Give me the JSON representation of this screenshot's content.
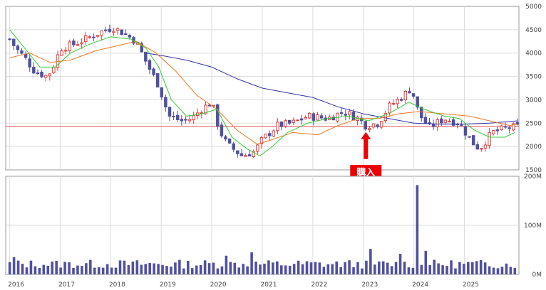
{
  "chart_data": [
    {
      "type": "candlestick",
      "panel": "price",
      "x_ticks": [
        "2016",
        "2017",
        "2018",
        "2019",
        "2020",
        "2021",
        "2022",
        "2023",
        "2024",
        "2025"
      ],
      "y_ticks": [
        "5000",
        "4500",
        "4000",
        "3500",
        "3000",
        "2500",
        "2000",
        "1500"
      ],
      "ylim": [
        1500,
        5000
      ],
      "reference_price": 2430,
      "annotation": {
        "label": "購入",
        "date": 2023.05,
        "price": 2250
      },
      "candle_series_anchors": [
        {
          "t": 2016.0,
          "v": 4300
        },
        {
          "t": 2016.12,
          "v": 4100
        },
        {
          "t": 2016.3,
          "v": 3900
        },
        {
          "t": 2016.5,
          "v": 3600
        },
        {
          "t": 2016.75,
          "v": 3500
        },
        {
          "t": 2016.9,
          "v": 3800
        },
        {
          "t": 2017.0,
          "v": 4100
        },
        {
          "t": 2017.3,
          "v": 4200
        },
        {
          "t": 2017.6,
          "v": 4350
        },
        {
          "t": 2017.9,
          "v": 4500
        },
        {
          "t": 2018.05,
          "v": 4550
        },
        {
          "t": 2018.3,
          "v": 4400
        },
        {
          "t": 2018.5,
          "v": 4250
        },
        {
          "t": 2018.75,
          "v": 3700
        },
        {
          "t": 2018.95,
          "v": 3300
        },
        {
          "t": 2019.15,
          "v": 2650
        },
        {
          "t": 2019.4,
          "v": 2550
        },
        {
          "t": 2019.6,
          "v": 2600
        },
        {
          "t": 2019.8,
          "v": 2800
        },
        {
          "t": 2020.0,
          "v": 2950
        },
        {
          "t": 2020.15,
          "v": 2350
        },
        {
          "t": 2020.3,
          "v": 2050
        },
        {
          "t": 2020.6,
          "v": 1800
        },
        {
          "t": 2020.85,
          "v": 1900
        },
        {
          "t": 2021.0,
          "v": 2150
        },
        {
          "t": 2021.3,
          "v": 2450
        },
        {
          "t": 2021.6,
          "v": 2500
        },
        {
          "t": 2021.9,
          "v": 2650
        },
        {
          "t": 2022.3,
          "v": 2600
        },
        {
          "t": 2022.6,
          "v": 2750
        },
        {
          "t": 2022.9,
          "v": 2600
        },
        {
          "t": 2023.05,
          "v": 2450
        },
        {
          "t": 2023.3,
          "v": 2500
        },
        {
          "t": 2023.5,
          "v": 2850
        },
        {
          "t": 2023.75,
          "v": 3050
        },
        {
          "t": 2023.95,
          "v": 3250
        },
        {
          "t": 2024.1,
          "v": 2700
        },
        {
          "t": 2024.3,
          "v": 2400
        },
        {
          "t": 2024.6,
          "v": 2600
        },
        {
          "t": 2024.9,
          "v": 2500
        },
        {
          "t": 2025.15,
          "v": 2100
        },
        {
          "t": 2025.3,
          "v": 1950
        },
        {
          "t": 2025.55,
          "v": 2300
        },
        {
          "t": 2025.85,
          "v": 2400
        },
        {
          "t": 2026.05,
          "v": 2420
        }
      ],
      "ma_short": [
        [
          2016.0,
          4500
        ],
        [
          2016.3,
          4100
        ],
        [
          2016.6,
          3700
        ],
        [
          2016.9,
          3700
        ],
        [
          2017.2,
          4000
        ],
        [
          2017.6,
          4200
        ],
        [
          2018.0,
          4350
        ],
        [
          2018.4,
          4300
        ],
        [
          2018.7,
          4100
        ],
        [
          2018.95,
          3700
        ],
        [
          2019.2,
          3000
        ],
        [
          2019.5,
          2650
        ],
        [
          2019.8,
          2700
        ],
        [
          2020.1,
          2800
        ],
        [
          2020.4,
          2200
        ],
        [
          2020.7,
          1950
        ],
        [
          2020.95,
          1800
        ],
        [
          2021.2,
          2000
        ],
        [
          2021.5,
          2300
        ],
        [
          2021.9,
          2500
        ],
        [
          2022.3,
          2600
        ],
        [
          2022.7,
          2650
        ],
        [
          2023.1,
          2550
        ],
        [
          2023.5,
          2700
        ],
        [
          2023.9,
          2950
        ],
        [
          2024.2,
          2800
        ],
        [
          2024.6,
          2650
        ],
        [
          2024.9,
          2600
        ],
        [
          2025.2,
          2350
        ],
        [
          2025.5,
          2200
        ],
        [
          2025.8,
          2200
        ],
        [
          2026.0,
          2300
        ]
      ],
      "ma_medium": [
        [
          2016.0,
          3900
        ],
        [
          2016.4,
          4000
        ],
        [
          2016.8,
          3800
        ],
        [
          2017.2,
          3850
        ],
        [
          2017.7,
          4050
        ],
        [
          2018.1,
          4150
        ],
        [
          2018.5,
          4250
        ],
        [
          2018.9,
          4000
        ],
        [
          2019.3,
          3600
        ],
        [
          2019.7,
          3100
        ],
        [
          2020.1,
          2800
        ],
        [
          2020.5,
          2350
        ],
        [
          2020.9,
          2050
        ],
        [
          2021.2,
          2150
        ],
        [
          2021.6,
          2300
        ],
        [
          2022.1,
          2250
        ],
        [
          2022.5,
          2450
        ],
        [
          2022.9,
          2600
        ],
        [
          2023.3,
          2600
        ],
        [
          2023.7,
          2700
        ],
        [
          2024.1,
          2750
        ],
        [
          2024.6,
          2700
        ],
        [
          2025.1,
          2650
        ],
        [
          2025.5,
          2550
        ],
        [
          2025.9,
          2450
        ],
        [
          2026.05,
          2480
        ]
      ],
      "ma_long": [
        [
          2018.7,
          4000
        ],
        [
          2019.0,
          3950
        ],
        [
          2019.5,
          3850
        ],
        [
          2020.0,
          3700
        ],
        [
          2020.5,
          3450
        ],
        [
          2021.0,
          3250
        ],
        [
          2021.5,
          3150
        ],
        [
          2022.0,
          3050
        ],
        [
          2022.5,
          2850
        ],
        [
          2023.0,
          2700
        ],
        [
          2023.5,
          2600
        ],
        [
          2024.0,
          2500
        ],
        [
          2024.5,
          2480
        ],
        [
          2025.0,
          2480
        ],
        [
          2025.5,
          2500
        ],
        [
          2026.05,
          2550
        ]
      ],
      "colors": {
        "up": "#e04040",
        "down": "#5050a0",
        "ma_short": "#33cc33",
        "ma_medium": "#ee7722",
        "ma_long": "#3333aa",
        "reference": "#e05050",
        "grid": "#dddddd",
        "annotation": "#ee0000"
      }
    },
    {
      "type": "bar",
      "panel": "volume",
      "y_ticks": [
        "200M",
        "100M",
        "0M"
      ],
      "ylim": [
        0,
        200
      ],
      "unit": "M",
      "spikes": [
        {
          "t": 2016.1,
          "v": 35
        },
        {
          "t": 2020.25,
          "v": 38
        },
        {
          "t": 2020.75,
          "v": 45
        },
        {
          "t": 2023.15,
          "v": 52
        },
        {
          "t": 2023.75,
          "v": 42
        },
        {
          "t": 2024.05,
          "v": 182
        },
        {
          "t": 2024.2,
          "v": 48
        }
      ],
      "typical_range": [
        12,
        30
      ],
      "colors": {
        "bar": "#5050a0",
        "grid": "#dddddd"
      }
    }
  ]
}
